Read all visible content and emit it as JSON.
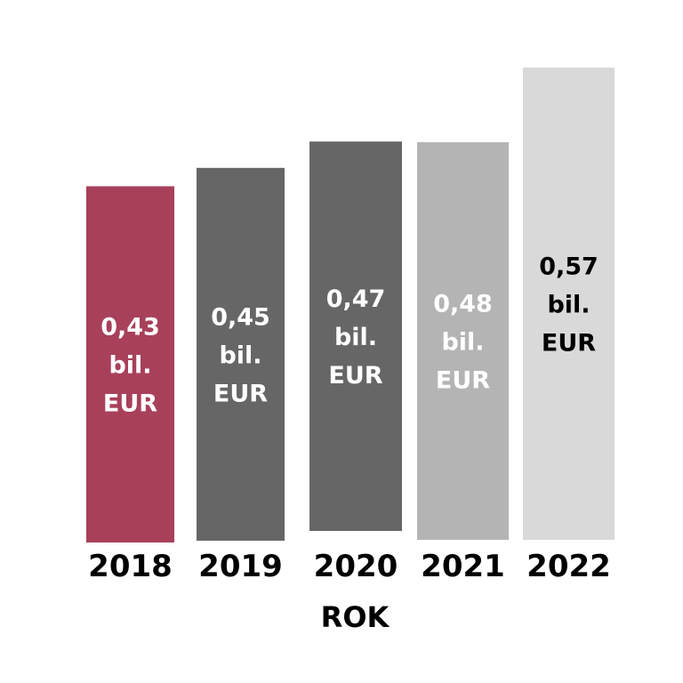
{
  "chart_data": {
    "type": "bar",
    "categories": [
      "2018",
      "2019",
      "2020",
      "2021",
      "2022"
    ],
    "values": [
      0.43,
      0.45,
      0.47,
      0.48,
      0.57
    ],
    "data_labels": [
      [
        "0,43",
        "bil.",
        "EUR"
      ],
      [
        "0,45",
        "bil.",
        "EUR"
      ],
      [
        "0,47",
        "bil.",
        "EUR"
      ],
      [
        "0,48",
        "bil.",
        "EUR"
      ],
      [
        "0,57",
        "bil.",
        "EUR"
      ]
    ],
    "bar_colors": [
      "#a8405a",
      "#666666",
      "#666666",
      "#b4b4b4",
      "#d9d9d9"
    ],
    "label_colors": [
      "#ffffff",
      "#ffffff",
      "#ffffff",
      "#ffffff",
      "#000000"
    ],
    "xlabel": "ROK",
    "ylabel": "",
    "grid": false,
    "legend": "none"
  }
}
